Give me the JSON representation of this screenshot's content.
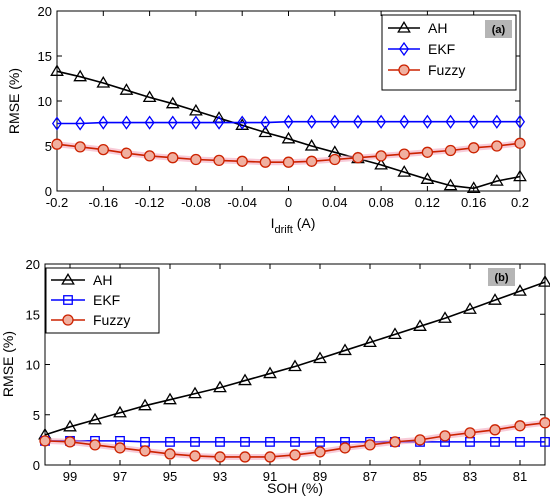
{
  "chart_data": [
    {
      "type": "line",
      "panel_tag": "(a)",
      "xlabel": "I",
      "xlabel_sub": "drift",
      "xlabel_unit": " (A)",
      "ylabel": "RMSE (%)",
      "xlim": [
        -0.2,
        0.2
      ],
      "ylim": [
        0,
        20
      ],
      "x_ticks": [
        -0.2,
        -0.16,
        -0.12,
        -0.08,
        -0.04,
        0,
        0.04,
        0.08,
        0.12,
        0.16,
        0.2
      ],
      "x_tick_labels": [
        "-0.2",
        "-0.16",
        "-0.12",
        "-0.08",
        "-0.04",
        "0",
        "0.04",
        "0.08",
        "0.12",
        "0.16",
        "0.2"
      ],
      "y_ticks": [
        0,
        5,
        10,
        15,
        20
      ],
      "y_tick_labels": [
        "0",
        "5",
        "10",
        "15",
        "20"
      ],
      "legend_position": "top-right",
      "x": [
        -0.2,
        -0.18,
        -0.16,
        -0.14,
        -0.12,
        -0.1,
        -0.08,
        -0.06,
        -0.04,
        -0.02,
        0,
        0.02,
        0.04,
        0.06,
        0.08,
        0.1,
        0.12,
        0.14,
        0.16,
        0.18,
        0.2
      ],
      "series": [
        {
          "name": "AH",
          "color": "#000000",
          "marker": "triangle",
          "values": [
            13.3,
            12.7,
            12.0,
            11.2,
            10.4,
            9.7,
            8.9,
            8.1,
            7.3,
            6.5,
            5.8,
            5.0,
            4.3,
            3.6,
            2.9,
            2.1,
            1.3,
            0.6,
            0.3,
            1.1,
            1.6
          ]
        },
        {
          "name": "EKF",
          "color": "#0000ff",
          "marker": "diamond",
          "values": [
            7.5,
            7.5,
            7.6,
            7.6,
            7.6,
            7.6,
            7.6,
            7.6,
            7.6,
            7.6,
            7.7,
            7.7,
            7.7,
            7.7,
            7.7,
            7.7,
            7.7,
            7.7,
            7.7,
            7.7,
            7.7
          ]
        },
        {
          "name": "Fuzzy",
          "color": "#cc2200",
          "marker": "circle",
          "values": [
            5.2,
            4.9,
            4.6,
            4.2,
            3.9,
            3.7,
            3.5,
            3.4,
            3.3,
            3.2,
            3.2,
            3.3,
            3.5,
            3.7,
            3.9,
            4.1,
            4.3,
            4.5,
            4.8,
            5.0,
            5.3
          ]
        }
      ]
    },
    {
      "type": "line",
      "panel_tag": "(b)",
      "xlabel": "SOH (%)",
      "ylabel": "RMSE (%)",
      "xlim": [
        100,
        80
      ],
      "ylim": [
        0,
        20
      ],
      "x_ticks": [
        99,
        97,
        95,
        93,
        91,
        89,
        87,
        85,
        83,
        81
      ],
      "x_tick_labels": [
        "99",
        "97",
        "95",
        "93",
        "91",
        "89",
        "87",
        "85",
        "83",
        "81"
      ],
      "y_ticks": [
        0,
        5,
        10,
        15,
        20
      ],
      "y_tick_labels": [
        "0",
        "5",
        "10",
        "15",
        "20"
      ],
      "legend_position": "top-left",
      "x": [
        100,
        99,
        98,
        97,
        96,
        95,
        94,
        93,
        92,
        91,
        90,
        89,
        88,
        87,
        86,
        85,
        84,
        83,
        82,
        81,
        80
      ],
      "series": [
        {
          "name": "AH",
          "color": "#000000",
          "marker": "triangle",
          "values": [
            3.0,
            3.8,
            4.5,
            5.2,
            5.9,
            6.5,
            7.1,
            7.7,
            8.4,
            9.1,
            9.8,
            10.6,
            11.4,
            12.2,
            13.0,
            13.8,
            14.6,
            15.5,
            16.4,
            17.3,
            18.2
          ]
        },
        {
          "name": "EKF",
          "color": "#0000ff",
          "marker": "square",
          "values": [
            2.4,
            2.4,
            2.4,
            2.4,
            2.3,
            2.3,
            2.3,
            2.3,
            2.3,
            2.3,
            2.3,
            2.3,
            2.3,
            2.3,
            2.3,
            2.3,
            2.3,
            2.3,
            2.3,
            2.3,
            2.3
          ]
        },
        {
          "name": "Fuzzy",
          "color": "#cc2200",
          "marker": "circle",
          "values": [
            2.4,
            2.3,
            2.0,
            1.7,
            1.4,
            1.1,
            0.9,
            0.8,
            0.8,
            0.8,
            1.0,
            1.3,
            1.7,
            2.0,
            2.3,
            2.5,
            2.9,
            3.2,
            3.5,
            3.9,
            4.2
          ]
        }
      ]
    }
  ]
}
